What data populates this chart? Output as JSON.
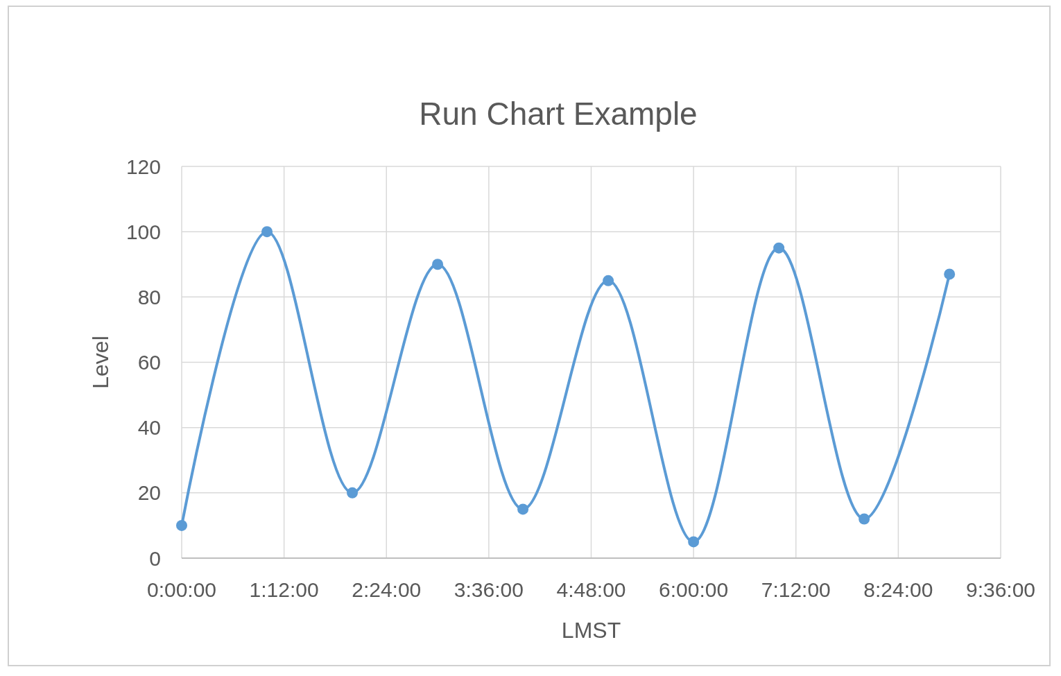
{
  "chart_data": {
    "type": "line",
    "title": "Run Chart Example",
    "xlabel": "LMST",
    "ylabel": "Level",
    "x": [
      0,
      1,
      2,
      3,
      4,
      5,
      6,
      7,
      8,
      9
    ],
    "series": [
      {
        "color": "#5b9bd5",
        "values": [
          10,
          100,
          20,
          90,
          15,
          85,
          5,
          95,
          12,
          87
        ]
      }
    ],
    "xlim": [
      0,
      9.6
    ],
    "xticks": [
      {
        "value": 0,
        "label": "0:00:00"
      },
      {
        "value": 1.2,
        "label": "1:12:00"
      },
      {
        "value": 2.4,
        "label": "2:24:00"
      },
      {
        "value": 3.6,
        "label": "3:36:00"
      },
      {
        "value": 4.8,
        "label": "4:48:00"
      },
      {
        "value": 6,
        "label": "6:00:00"
      },
      {
        "value": 7.2,
        "label": "7:12:00"
      },
      {
        "value": 8.4,
        "label": "8:24:00"
      },
      {
        "value": 9.6,
        "label": "9:36:00"
      }
    ],
    "ylim": [
      0,
      120
    ],
    "yticks": [
      0,
      20,
      40,
      60,
      80,
      100,
      120
    ],
    "grid": true,
    "marker": "circle",
    "line_style": "solid"
  }
}
